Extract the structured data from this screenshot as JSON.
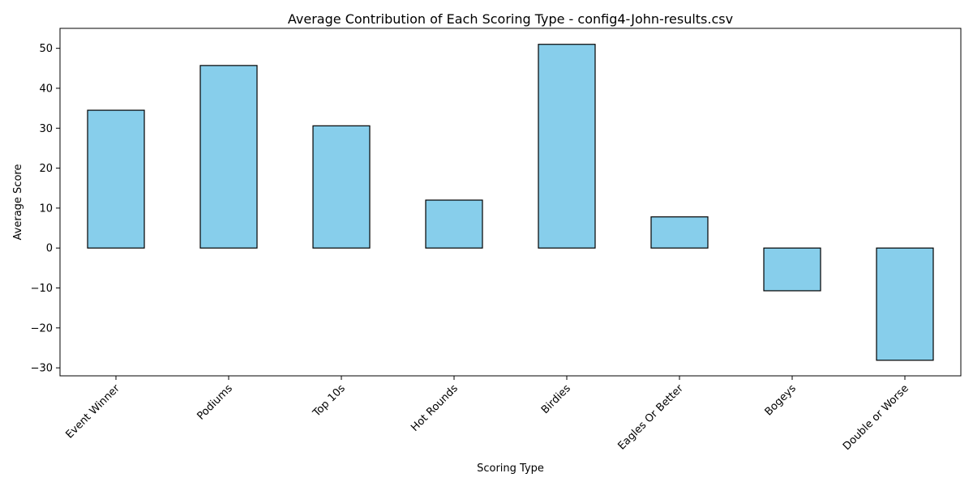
{
  "chart_data": {
    "type": "bar",
    "title": "Average Contribution of Each Scoring Type - config4-John-results.csv",
    "xlabel": "Scoring Type",
    "ylabel": "Average Score",
    "categories": [
      "Event Winner",
      "Podiums",
      "Top 10s",
      "Hot Rounds",
      "Birdies",
      "Eagles Or Better",
      "Bogeys",
      "Double or Worse"
    ],
    "values": [
      34.5,
      45.7,
      30.6,
      12.0,
      51.0,
      7.8,
      -10.7,
      -28.1
    ],
    "ylim": [
      -32,
      55
    ],
    "yticks": [
      -30,
      -20,
      -10,
      0,
      10,
      20,
      30,
      40,
      50
    ],
    "ytick_labels": [
      "−30",
      "−20",
      "−10",
      "0",
      "10",
      "20",
      "30",
      "40",
      "50"
    ],
    "x_tick_rotation_deg": 45,
    "grid": false,
    "legend": "none",
    "bar_color": "#87CEEB",
    "bar_edge_color": "#000000"
  }
}
